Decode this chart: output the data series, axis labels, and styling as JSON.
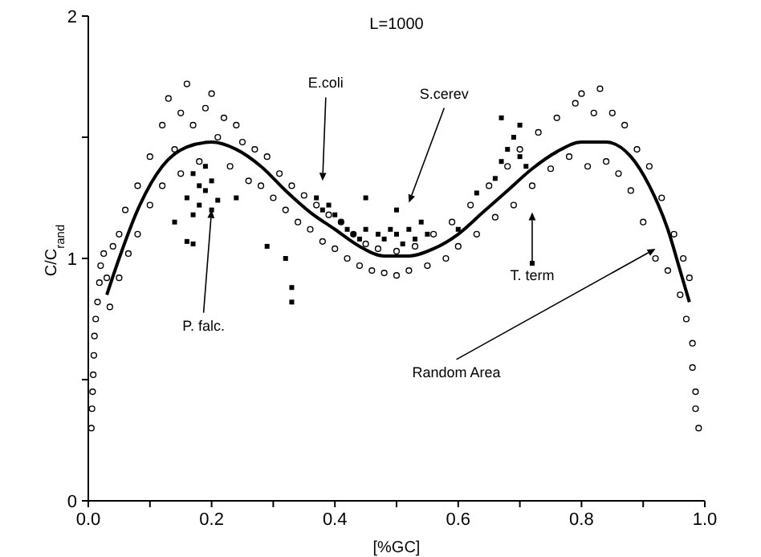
{
  "chart_data": {
    "type": "scatter",
    "title": "L=1000",
    "xlabel": "[%GC]",
    "ylabel": "C/C$_{rand}$",
    "xlim": [
      0,
      1
    ],
    "ylim": [
      0,
      2
    ],
    "xticks": [
      {
        "value": 0,
        "label": "0.0"
      },
      {
        "value": 0.1,
        "label": null
      },
      {
        "value": 0.2,
        "label": "0.2"
      },
      {
        "value": 0.3,
        "label": null
      },
      {
        "value": 0.4,
        "label": "0.4"
      },
      {
        "value": 0.5,
        "label": null
      },
      {
        "value": 0.6,
        "label": "0.6"
      },
      {
        "value": 0.7,
        "label": null
      },
      {
        "value": 0.8,
        "label": "0.8"
      },
      {
        "value": 0.9,
        "label": null
      },
      {
        "value": 1,
        "label": "1.0"
      }
    ],
    "yticks": [
      0,
      {
        "value": 0.5,
        "label": null
      },
      1,
      {
        "value": 1.5,
        "label": null
      },
      2
    ],
    "grid": false,
    "series": [
      {
        "marker": "circle",
        "color": "#000000",
        "x": [
          0.005,
          0.006,
          0.007,
          0.008,
          0.009,
          0.01,
          0.012,
          0.015,
          0.018,
          0.02,
          0.025,
          0.03,
          0.035,
          0.04,
          0.05,
          0.05,
          0.06,
          0.065,
          0.08,
          0.08,
          0.1,
          0.1,
          0.12,
          0.12,
          0.13,
          0.14,
          0.15,
          0.15,
          0.16,
          0.17,
          0.18,
          0.19,
          0.2,
          0.21,
          0.22,
          0.23,
          0.24,
          0.25,
          0.26,
          0.27,
          0.28,
          0.29,
          0.3,
          0.31,
          0.32,
          0.33,
          0.34,
          0.35,
          0.36,
          0.37,
          0.38,
          0.39,
          0.4,
          0.41,
          0.42,
          0.43,
          0.44,
          0.45,
          0.46,
          0.47,
          0.48,
          0.5,
          0.5,
          0.52,
          0.53,
          0.55,
          0.56,
          0.58,
          0.59,
          0.6,
          0.62,
          0.63,
          0.65,
          0.66,
          0.68,
          0.69,
          0.7,
          0.72,
          0.73,
          0.75,
          0.76,
          0.78,
          0.79,
          0.8,
          0.81,
          0.82,
          0.83,
          0.84,
          0.85,
          0.86,
          0.87,
          0.88,
          0.89,
          0.9,
          0.91,
          0.92,
          0.93,
          0.94,
          0.95,
          0.96,
          0.965,
          0.97,
          0.975,
          0.98,
          0.98,
          0.985,
          0.985,
          0.99
        ],
        "values": [
          0.3,
          0.38,
          0.45,
          0.52,
          0.6,
          0.68,
          0.75,
          0.82,
          0.9,
          0.97,
          1.02,
          0.92,
          0.8,
          1.05,
          1.1,
          0.92,
          1.2,
          1.02,
          1.3,
          1.1,
          1.42,
          1.22,
          1.55,
          1.3,
          1.66,
          1.45,
          1.6,
          1.35,
          1.72,
          1.55,
          1.4,
          1.62,
          1.68,
          1.5,
          1.58,
          1.38,
          1.55,
          1.48,
          1.32,
          1.45,
          1.3,
          1.42,
          1.25,
          1.35,
          1.2,
          1.3,
          1.15,
          1.26,
          1.12,
          1.22,
          1.07,
          1.18,
          1.04,
          1.15,
          1.0,
          1.1,
          0.97,
          1.06,
          0.95,
          1.04,
          0.94,
          1.03,
          0.93,
          0.95,
          1.05,
          0.97,
          1.1,
          1.0,
          1.15,
          1.05,
          1.22,
          1.1,
          1.3,
          1.17,
          1.38,
          1.22,
          1.45,
          1.3,
          1.52,
          1.37,
          1.58,
          1.42,
          1.64,
          1.68,
          1.38,
          1.6,
          1.7,
          1.4,
          1.6,
          1.35,
          1.55,
          1.28,
          1.45,
          1.15,
          1.38,
          1.0,
          1.25,
          0.95,
          1.1,
          0.85,
          1.0,
          0.75,
          0.92,
          0.65,
          0.55,
          0.45,
          0.38,
          0.3
        ]
      },
      {
        "marker": "square",
        "color": "#000000",
        "x": [
          0.16,
          0.17,
          0.17,
          0.18,
          0.18,
          0.19,
          0.19,
          0.2,
          0.2,
          0.21,
          0.16,
          0.17,
          0.14,
          0.24,
          0.29,
          0.33,
          0.33,
          0.32,
          0.37,
          0.38,
          0.39,
          0.4,
          0.41,
          0.42,
          0.43,
          0.44,
          0.45,
          0.47,
          0.48,
          0.49,
          0.5,
          0.51,
          0.52,
          0.53,
          0.54,
          0.55,
          0.5,
          0.45,
          0.63,
          0.66,
          0.67,
          0.68,
          0.69,
          0.7,
          0.71,
          0.7,
          0.67,
          0.72,
          0.6
        ],
        "values": [
          1.25,
          1.35,
          1.18,
          1.3,
          1.22,
          1.38,
          1.28,
          1.2,
          1.32,
          1.24,
          1.07,
          1.06,
          1.15,
          1.25,
          1.05,
          0.88,
          0.82,
          1.0,
          1.25,
          1.2,
          1.22,
          1.18,
          1.15,
          1.12,
          1.1,
          1.08,
          1.12,
          1.1,
          1.08,
          1.12,
          1.1,
          1.06,
          1.12,
          1.08,
          1.15,
          1.1,
          1.2,
          1.25,
          1.27,
          1.33,
          1.4,
          1.45,
          1.5,
          1.42,
          1.38,
          1.55,
          1.58,
          0.98,
          1.12
        ]
      },
      {
        "type": "line",
        "marker": "none",
        "line_style": "solid",
        "color": "#000000",
        "x": [
          0.03,
          0.05,
          0.08,
          0.12,
          0.16,
          0.2,
          0.24,
          0.28,
          0.32,
          0.36,
          0.4,
          0.44,
          0.48,
          0.52,
          0.56,
          0.6,
          0.64,
          0.68,
          0.72,
          0.76,
          0.8,
          0.84,
          0.88,
          0.91,
          0.94,
          0.96,
          0.975
        ],
        "values": [
          0.85,
          1.0,
          1.2,
          1.38,
          1.46,
          1.48,
          1.45,
          1.38,
          1.28,
          1.19,
          1.12,
          1.05,
          1.01,
          1.01,
          1.04,
          1.1,
          1.19,
          1.28,
          1.37,
          1.44,
          1.48,
          1.48,
          1.42,
          1.3,
          1.12,
          0.95,
          0.82
        ]
      }
    ],
    "annotations": [
      "E.coli",
      "S.cerev",
      "T. term",
      {
        "text": "P. falc.",
        "x": 0.2,
        "y": 1.2
      },
      "Random Area"
    ]
  }
}
